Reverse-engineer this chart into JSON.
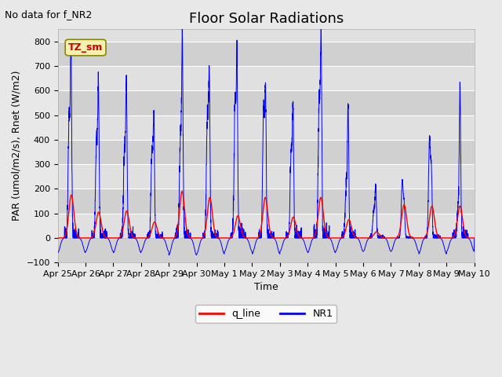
{
  "title": "Floor Solar Radiations",
  "subtitle": "No data for f_NR2",
  "xlabel": "Time",
  "ylabel": "PAR (umol/m2/s), Rnet (W/m2)",
  "ylim": [
    -100,
    850
  ],
  "yticks": [
    -100,
    0,
    100,
    200,
    300,
    400,
    500,
    600,
    700,
    800
  ],
  "fig_bg": "#e8e8e8",
  "plot_bg": "#e0e0e0",
  "tz_label": "TZ_sm",
  "tz_fg": "#cc0000",
  "tz_bg": "#f5f0b0",
  "tz_border": "#888800",
  "n_days": 15,
  "title_fontsize": 13,
  "label_fontsize": 9,
  "tick_fontsize": 8,
  "subtitle_fontsize": 9,
  "xticklabels": [
    "Apr 25",
    "Apr 26",
    "Apr 27",
    "Apr 28",
    "Apr 29",
    "Apr 30",
    "May 1",
    "May 2",
    "May 3",
    "May 4",
    "May 5",
    "May 6",
    "May 7",
    "May 8",
    "May 9",
    "May 10"
  ],
  "nr1_day_peaks": [
    725,
    580,
    590,
    455,
    750,
    620,
    680,
    545,
    500,
    770,
    530,
    200,
    115,
    235,
    600
  ],
  "nr1_day_peaks2": [
    483,
    410,
    350,
    350,
    415,
    500,
    540,
    515,
    350,
    560,
    200,
    115,
    235,
    405,
    130
  ],
  "nr1_neg_depth": [
    -60,
    -55,
    -60,
    -55,
    -70,
    -65,
    -55,
    -65,
    -55,
    -60,
    -55,
    -55,
    -55,
    -65,
    -55
  ],
  "q_day_peaks": [
    175,
    105,
    110,
    65,
    190,
    165,
    90,
    165,
    85,
    165,
    75,
    25,
    135,
    130,
    130
  ]
}
